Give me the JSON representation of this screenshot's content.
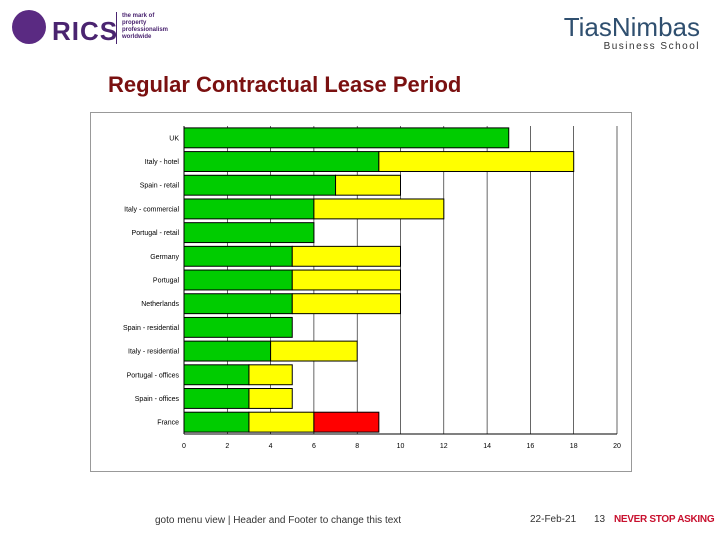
{
  "header": {
    "rics_logo": "RICS",
    "rics_tagline": "the mark of property professionalism worldwide",
    "tias_logo_prefix": "Tias",
    "tias_logo_suffix": "Nimbas",
    "tias_sub": "Business School"
  },
  "colors": {
    "green": "#00cc00",
    "yellow": "#ffff00",
    "red": "#ff0000",
    "accent": "#7a1010"
  },
  "chart_data": {
    "type": "bar",
    "orientation": "horizontal",
    "stacked": true,
    "title": "Regular Contractual Lease Period",
    "categories": [
      "UK",
      "Italy - hotel",
      "Spain - retail",
      "Italy - commercial",
      "Portugal - retail",
      "Germany",
      "Portugal",
      "Netherlands",
      "Spain - residential",
      "Italy - residential",
      "Portugal - offices",
      "Spain - offices",
      "France"
    ],
    "series": [
      {
        "color": "green",
        "values": [
          15,
          9,
          7,
          6,
          6,
          5,
          5,
          5,
          5,
          4,
          3,
          3,
          3
        ]
      },
      {
        "color": "yellow",
        "values": [
          0,
          9,
          3,
          6,
          0,
          5,
          5,
          5,
          0,
          4,
          2,
          2,
          3
        ]
      },
      {
        "color": "red",
        "values": [
          0,
          0,
          0,
          0,
          0,
          0,
          0,
          0,
          0,
          0,
          0,
          0,
          3
        ]
      }
    ],
    "xlim": [
      0,
      20
    ],
    "xticks": [
      "0",
      "2",
      "4",
      "6",
      "8",
      "10",
      "12",
      "14",
      "16",
      "18",
      "20"
    ],
    "grid": true
  },
  "footer": {
    "note": "goto menu view | Header and Footer to change this text",
    "date": "22-Feb-21",
    "page": "13",
    "slogan": "NEVER STOP ASKING"
  }
}
